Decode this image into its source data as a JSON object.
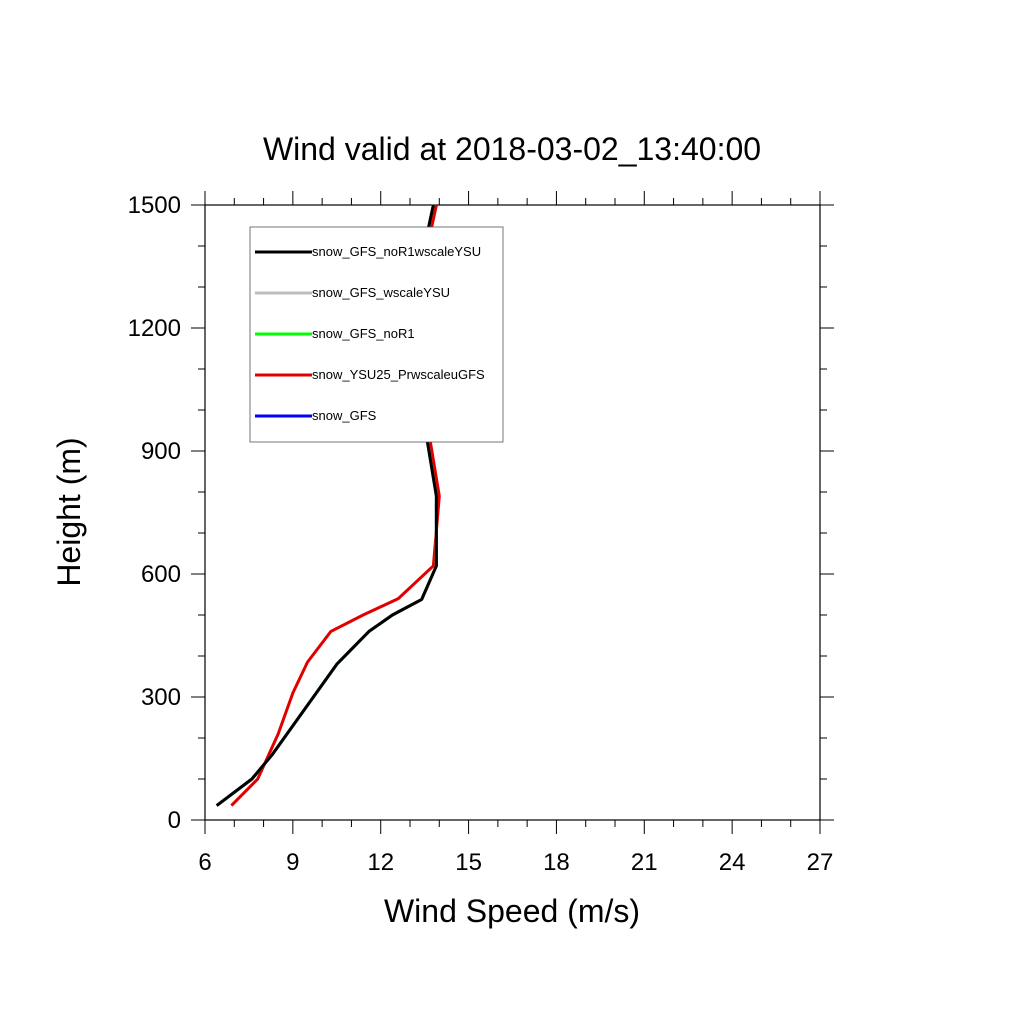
{
  "chart_data": {
    "type": "line",
    "title": "Wind valid at 2018-03-02_13:40:00",
    "xlabel": "Wind Speed (m/s)",
    "ylabel": "Height (m)",
    "xlim": [
      6,
      27
    ],
    "ylim": [
      0,
      1500
    ],
    "xticks": [
      "6",
      "9",
      "12",
      "15",
      "18",
      "21",
      "24",
      "27"
    ],
    "yticks": [
      "0",
      "300",
      "600",
      "900",
      "1200",
      "1500"
    ],
    "grid": false,
    "legend_position": "top-left",
    "series": [
      {
        "name": "snow_GFS_noR1wscaleYSU",
        "color": "#000000",
        "points": [
          [
            6.4,
            35
          ],
          [
            7.6,
            100
          ],
          [
            8.3,
            160
          ],
          [
            9.1,
            240
          ],
          [
            9.7,
            300
          ],
          [
            10.5,
            380
          ],
          [
            11.6,
            460
          ],
          [
            12.4,
            500
          ],
          [
            13.4,
            538
          ],
          [
            13.9,
            620
          ],
          [
            13.9,
            790
          ],
          [
            13.6,
            920
          ],
          [
            13.3,
            1020
          ],
          [
            13.0,
            1140
          ],
          [
            13.0,
            1230
          ],
          [
            13.2,
            1310
          ],
          [
            13.5,
            1400
          ],
          [
            13.8,
            1500
          ]
        ]
      },
      {
        "name": "snow_GFS_wscaleYSU",
        "color": "#bdbdbd",
        "points": [
          [
            6.4,
            35
          ],
          [
            7.6,
            100
          ],
          [
            8.3,
            160
          ],
          [
            9.1,
            240
          ],
          [
            9.7,
            300
          ],
          [
            10.5,
            380
          ],
          [
            11.6,
            460
          ],
          [
            12.4,
            500
          ],
          [
            13.4,
            538
          ],
          [
            13.9,
            620
          ],
          [
            13.9,
            790
          ],
          [
            13.6,
            920
          ],
          [
            13.3,
            1020
          ],
          [
            13.0,
            1140
          ],
          [
            13.0,
            1230
          ],
          [
            13.2,
            1310
          ],
          [
            13.5,
            1400
          ],
          [
            13.8,
            1500
          ]
        ]
      },
      {
        "name": "snow_GFS_noR1",
        "color": "#00ff00",
        "points": [
          [
            6.4,
            35
          ],
          [
            7.6,
            100
          ],
          [
            8.3,
            160
          ],
          [
            9.1,
            240
          ],
          [
            9.7,
            300
          ],
          [
            10.5,
            380
          ],
          [
            11.6,
            460
          ],
          [
            12.4,
            500
          ],
          [
            13.4,
            538
          ],
          [
            13.9,
            620
          ],
          [
            13.9,
            790
          ],
          [
            13.6,
            920
          ],
          [
            13.3,
            1020
          ],
          [
            13.0,
            1140
          ],
          [
            13.0,
            1230
          ],
          [
            13.2,
            1310
          ],
          [
            13.5,
            1400
          ],
          [
            13.8,
            1500
          ]
        ]
      },
      {
        "name": "snow_YSU25_PrwscaleuGFS",
        "color": "#e00000",
        "points": [
          [
            6.9,
            35
          ],
          [
            7.8,
            100
          ],
          [
            8.5,
            210
          ],
          [
            9.0,
            310
          ],
          [
            9.5,
            385
          ],
          [
            10.3,
            460
          ],
          [
            11.4,
            500
          ],
          [
            12.6,
            540
          ],
          [
            13.8,
            620
          ],
          [
            14.0,
            790
          ],
          [
            13.7,
            920
          ],
          [
            13.4,
            1020
          ],
          [
            13.1,
            1140
          ],
          [
            13.1,
            1230
          ],
          [
            13.3,
            1310
          ],
          [
            13.6,
            1400
          ],
          [
            13.9,
            1500
          ]
        ]
      },
      {
        "name": "snow_GFS",
        "color": "#0000ff",
        "points": [
          [
            6.4,
            35
          ],
          [
            7.6,
            100
          ],
          [
            8.3,
            160
          ],
          [
            9.1,
            240
          ],
          [
            9.7,
            300
          ],
          [
            10.5,
            380
          ],
          [
            11.6,
            460
          ],
          [
            12.4,
            500
          ],
          [
            13.4,
            538
          ],
          [
            13.9,
            620
          ],
          [
            13.9,
            790
          ],
          [
            13.6,
            920
          ],
          [
            13.3,
            1020
          ],
          [
            13.0,
            1140
          ],
          [
            13.0,
            1230
          ],
          [
            13.2,
            1310
          ],
          [
            13.5,
            1400
          ],
          [
            13.8,
            1500
          ]
        ]
      }
    ],
    "draw_order": [
      4,
      3,
      2,
      1,
      0
    ]
  }
}
